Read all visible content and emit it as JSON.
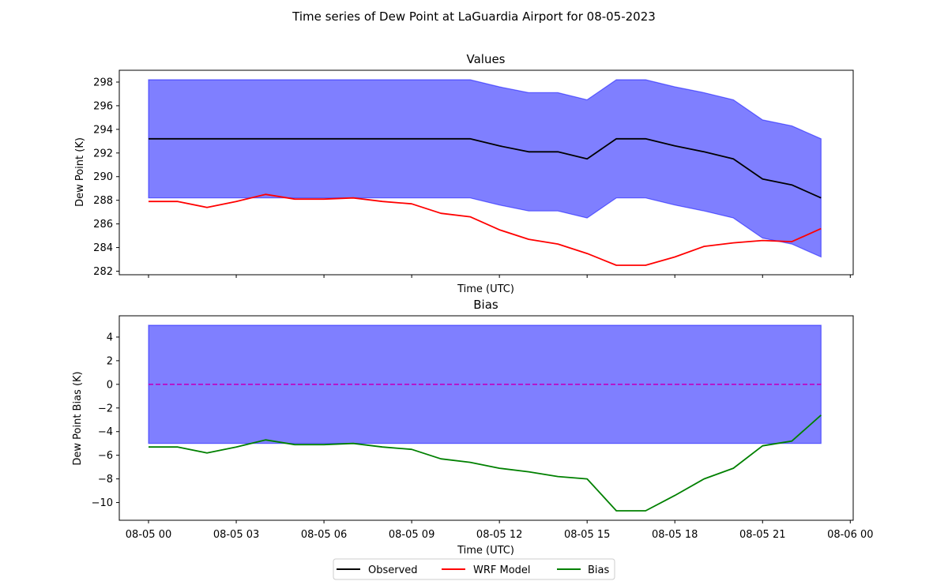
{
  "suptitle": "Time series of Dew Point at LaGuardia Airport for 08-05-2023",
  "legend": {
    "placement": "bottom-center",
    "entries": [
      {
        "label": "Observed",
        "color": "#000000"
      },
      {
        "label": "WRF Model",
        "color": "#ff0000"
      },
      {
        "label": "Bias",
        "color": "#008000"
      }
    ]
  },
  "chart_data": [
    {
      "type": "line",
      "title": "Values",
      "xlabel": "Time (UTC)",
      "ylabel": "Dew Point (K)",
      "ylim": [
        281.7,
        299.0
      ],
      "yticks": [
        282,
        284,
        286,
        288,
        290,
        292,
        294,
        296,
        298
      ],
      "x_hours": [
        0,
        1,
        2,
        3,
        4,
        5,
        6,
        7,
        8,
        9,
        10,
        11,
        12,
        13,
        14,
        15,
        16,
        17,
        18,
        19,
        20,
        21,
        22,
        23
      ],
      "band": {
        "color": "#0000ff",
        "upper": [
          298.2,
          298.2,
          298.2,
          298.2,
          298.2,
          298.2,
          298.2,
          298.2,
          298.2,
          298.2,
          298.2,
          298.2,
          297.6,
          297.1,
          297.1,
          296.5,
          298.2,
          298.2,
          297.6,
          297.1,
          296.5,
          294.8,
          294.3,
          293.2
        ],
        "lower": [
          288.2,
          288.2,
          288.2,
          288.2,
          288.2,
          288.2,
          288.2,
          288.2,
          288.2,
          288.2,
          288.2,
          288.2,
          287.6,
          287.1,
          287.1,
          286.5,
          288.2,
          288.2,
          287.6,
          287.1,
          286.5,
          284.8,
          284.3,
          283.2
        ]
      },
      "series": [
        {
          "name": "Observed",
          "color": "#000000",
          "values": [
            293.2,
            293.2,
            293.2,
            293.2,
            293.2,
            293.2,
            293.2,
            293.2,
            293.2,
            293.2,
            293.2,
            293.2,
            292.6,
            292.1,
            292.1,
            291.5,
            293.2,
            293.2,
            292.6,
            292.1,
            291.5,
            289.8,
            289.3,
            288.2
          ]
        },
        {
          "name": "WRF Model",
          "color": "#ff0000",
          "values": [
            287.9,
            287.9,
            287.4,
            287.9,
            288.5,
            288.1,
            288.1,
            288.2,
            287.9,
            287.7,
            286.9,
            286.6,
            285.5,
            284.7,
            284.3,
            283.5,
            282.5,
            282.5,
            283.2,
            284.1,
            284.4,
            284.6,
            284.5,
            285.6
          ]
        }
      ]
    },
    {
      "type": "line",
      "title": "Bias",
      "xlabel": "Time (UTC)",
      "ylabel": "Dew Point Bias (K)",
      "ylim": [
        -11.5,
        5.8
      ],
      "yticks": [
        -10,
        -8,
        -6,
        -4,
        -2,
        0,
        2,
        4
      ],
      "xlim_hours": [
        -1.0,
        24.1
      ],
      "xticks": [
        {
          "hour": 0,
          "label": "08-05 00"
        },
        {
          "hour": 3,
          "label": "08-05 03"
        },
        {
          "hour": 6,
          "label": "08-05 06"
        },
        {
          "hour": 9,
          "label": "08-05 09"
        },
        {
          "hour": 12,
          "label": "08-05 12"
        },
        {
          "hour": 15,
          "label": "08-05 15"
        },
        {
          "hour": 18,
          "label": "08-05 18"
        },
        {
          "hour": 21,
          "label": "08-05 21"
        },
        {
          "hour": 24,
          "label": "08-06 00"
        }
      ],
      "x_hours": [
        0,
        1,
        2,
        3,
        4,
        5,
        6,
        7,
        8,
        9,
        10,
        11,
        12,
        13,
        14,
        15,
        16,
        17,
        18,
        19,
        20,
        21,
        22,
        23
      ],
      "band": {
        "color": "#0000ff",
        "upper": 5,
        "lower": -5
      },
      "zero_line": {
        "value": 0,
        "color": "#c000c0",
        "style": "dashed"
      },
      "series": [
        {
          "name": "Bias",
          "color": "#008000",
          "values": [
            -5.3,
            -5.3,
            -5.8,
            -5.3,
            -4.7,
            -5.1,
            -5.1,
            -5.0,
            -5.3,
            -5.5,
            -6.3,
            -6.6,
            -7.1,
            -7.4,
            -7.8,
            -8.0,
            -10.7,
            -10.7,
            -9.4,
            -8.0,
            -7.1,
            -5.2,
            -4.8,
            -2.6
          ]
        }
      ]
    }
  ]
}
